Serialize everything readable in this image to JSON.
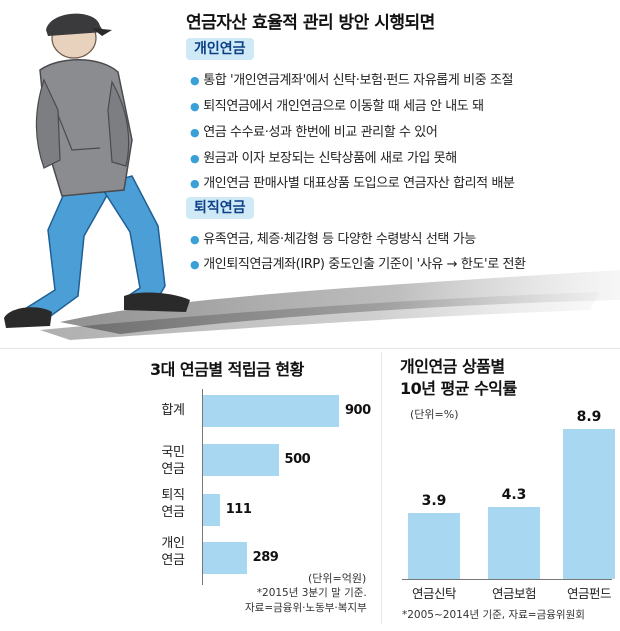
{
  "panel": {
    "title": "연금자산 효율적 관리 방안 시행되면",
    "sections": [
      {
        "name": "개인연금",
        "bullets": [
          "통합 '개인연금계좌'에서 신탁·보험·펀드 자유롭게 비중 조절",
          "퇴직연금에서 개인연금으로 이동할 때 세금 안 내도 돼",
          "연금 수수료·성과 한번에 비교 관리할 수 있어",
          "원금과 이자 보장되는 신탁상품에 새로 가입 못해",
          "개인연금 판매사별 대표상품 도입으로 연금자산 합리적 배분"
        ]
      },
      {
        "name": "퇴직연금",
        "bullets": [
          "유족연금, 체증·체감형 등 다양한 수령방식 선택 가능",
          "개인퇴직연금계좌(IRP) 중도인출 기준이 '사유 → 한도'로 전환"
        ]
      }
    ]
  },
  "colors": {
    "bar": "#a7d7f1",
    "badge_bg": "#cfe9f7",
    "badge_text": "#0b3f86",
    "bullet_dot": "#3aa0d8",
    "pants": "#4c9fd6",
    "jacket": "#8a8c90"
  },
  "chart_data": [
    {
      "type": "bar",
      "orientation": "horizontal",
      "title": "3대 연금별 적립금 현황",
      "categories": [
        "합계",
        "국민\n연금",
        "퇴직\n연금",
        "개인\n연금"
      ],
      "values": [
        900,
        500,
        111,
        289
      ],
      "value_labels": [
        "900",
        "500",
        "111",
        "289"
      ],
      "unit": "(단위=억원)",
      "notes": [
        "*2015년 3분기 말 기준.",
        "자료=금융위·노동부·복지부"
      ],
      "xlim": [
        0,
        900
      ]
    },
    {
      "type": "bar",
      "orientation": "vertical",
      "title": "개인연금 상품별\n10년 평균 수익률",
      "categories": [
        "연금신탁",
        "연금보험",
        "연금펀드"
      ],
      "values": [
        3.9,
        4.3,
        8.9
      ],
      "value_labels": [
        "3.9",
        "4.3",
        "8.9"
      ],
      "unit": "(단위=%)",
      "notes": [
        "*2005~2014년 기준, 자료=금융위원회"
      ],
      "ylim": [
        0,
        8.9
      ]
    }
  ]
}
